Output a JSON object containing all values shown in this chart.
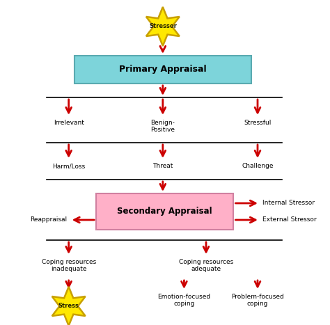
{
  "background_color": "#ffffff",
  "star_color": "#FFE800",
  "star_edge_color": "#C8A000",
  "arrow_color": "#CC0000",
  "primary_box_color": "#7DD4DA",
  "primary_box_edge": "#5AAAB0",
  "secondary_box_color": "#FFB0C8",
  "secondary_box_edge": "#D080A0",
  "text_color": "#000000",
  "star1_label": "Stressor",
  "star2_label": "Stress",
  "primary_label": "Primary Appraisal",
  "secondary_label": "Secondary Appraisal",
  "left_labels": [
    "Irrelevant",
    "Harm/Loss"
  ],
  "center_labels": [
    "Benign-\nPositive",
    "Threat"
  ],
  "right_labels": [
    "Stressful",
    "Challenge"
  ],
  "right_side_labels": [
    "Internal Stressor",
    "External Stressor"
  ],
  "left_side_label": "Reappraisal",
  "bottom_left_label": "Coping resources\ninadequate",
  "bottom_center_label": "Coping resources\nadequate",
  "emotion_label": "Emotion-focused\ncoping",
  "problem_label": "Problem-focused\ncoping"
}
